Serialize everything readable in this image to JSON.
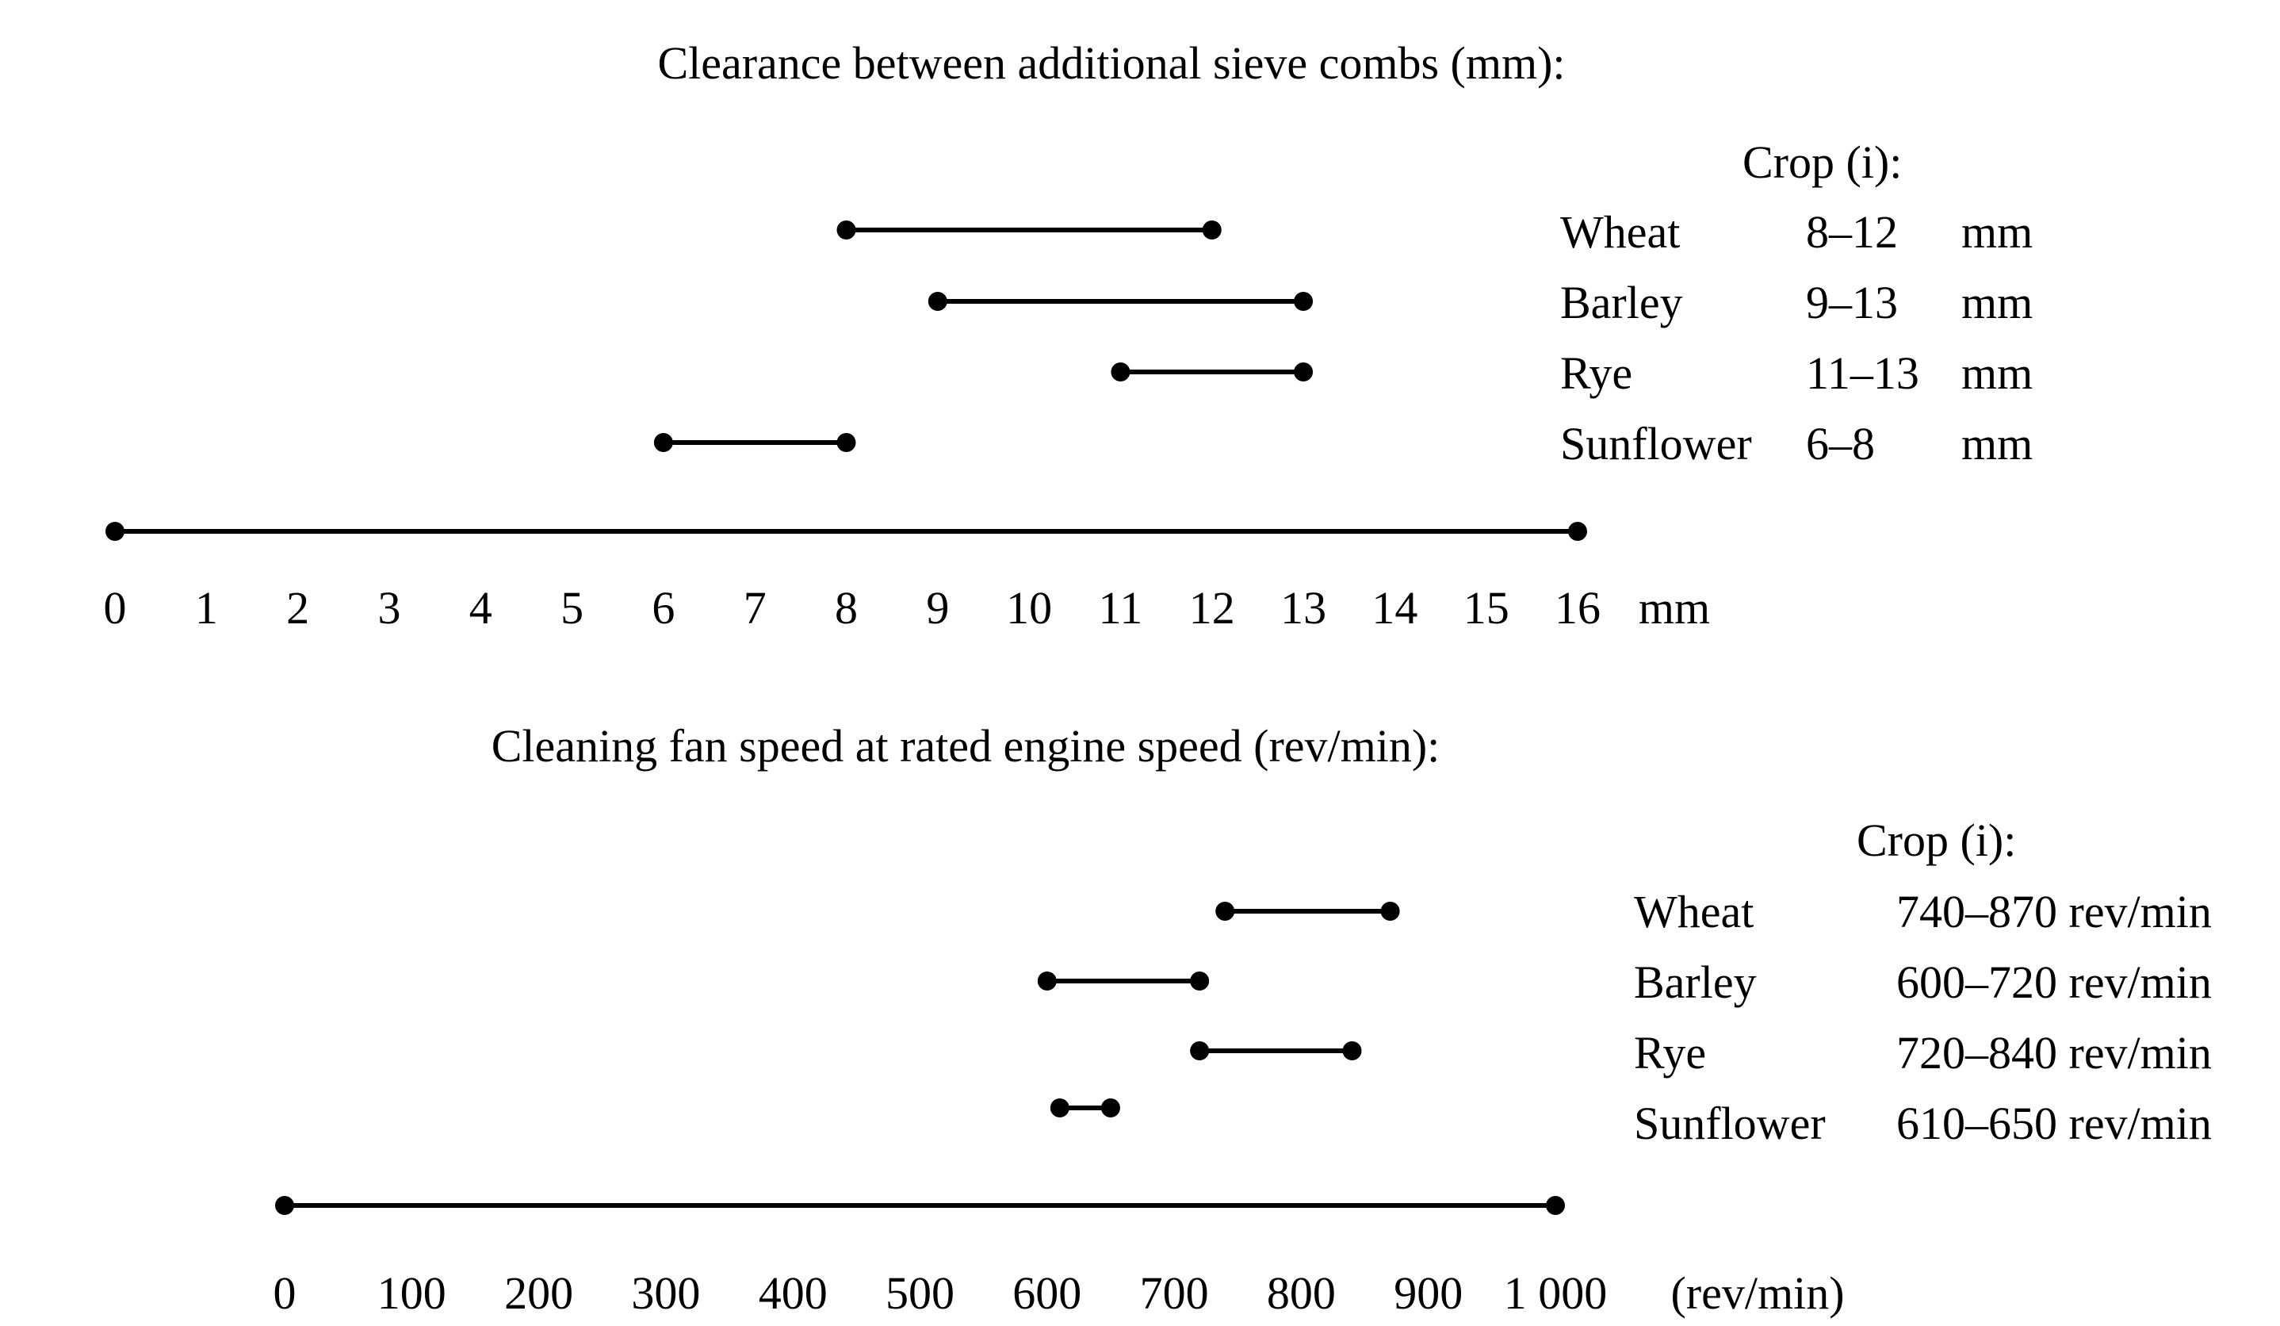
{
  "page": {
    "background": "#ffffff",
    "ink": "#000000"
  },
  "chart_data": [
    {
      "type": "bar",
      "subtype": "interval-range",
      "orientation": "horizontal",
      "title": "Clearance between additional sieve combs (mm):",
      "unit": "mm",
      "xlim": [
        0,
        16
      ],
      "grid": false,
      "legend_position": "right",
      "axis": {
        "min": 0,
        "max": 16,
        "tick_values": [
          0,
          1,
          2,
          3,
          4,
          5,
          6,
          7,
          8,
          9,
          10,
          11,
          12,
          13,
          14,
          15,
          16
        ],
        "tick_labels": [
          "0",
          "1",
          "2",
          "3",
          "4",
          "5",
          "6",
          "7",
          "8",
          "9",
          "10",
          "11",
          "12",
          "13",
          "14",
          "15",
          "16"
        ],
        "unit_label": "mm"
      },
      "series": [
        {
          "name": "Wheat",
          "range": [
            8,
            12
          ]
        },
        {
          "name": "Barley",
          "range": [
            9,
            13
          ]
        },
        {
          "name": "Rye",
          "range": [
            11,
            13
          ]
        },
        {
          "name": "Sunflower",
          "range": [
            6,
            8
          ]
        }
      ],
      "legend": {
        "title": "Crop (i):",
        "rows": [
          {
            "crop": "Wheat",
            "range": "8–12",
            "unit": "mm"
          },
          {
            "crop": "Barley",
            "range": "9–13",
            "unit": "mm"
          },
          {
            "crop": "Rye",
            "range": "11–13",
            "unit": "mm"
          },
          {
            "crop": "Sunflower",
            "range": "6–8",
            "unit": "mm"
          }
        ]
      }
    },
    {
      "type": "bar",
      "subtype": "interval-range",
      "orientation": "horizontal",
      "title": "Cleaning fan speed at rated engine speed (rev/min):",
      "unit": "rev/min",
      "xlim": [
        0,
        1000
      ],
      "grid": false,
      "legend_position": "right",
      "axis": {
        "min": 0,
        "max": 1000,
        "tick_values": [
          0,
          100,
          200,
          300,
          400,
          500,
          600,
          700,
          800,
          900,
          1000
        ],
        "tick_labels": [
          "0",
          "100",
          "200",
          "300",
          "400",
          "500",
          "600",
          "700",
          "800",
          "900",
          "1 000"
        ],
        "unit_label": "(rev/min)"
      },
      "series": [
        {
          "name": "Wheat",
          "range": [
            740,
            870
          ]
        },
        {
          "name": "Barley",
          "range": [
            600,
            720
          ]
        },
        {
          "name": "Rye",
          "range": [
            720,
            840
          ]
        },
        {
          "name": "Sunflower",
          "range": [
            610,
            650
          ]
        }
      ],
      "legend": {
        "title": "Crop (i):",
        "rows": [
          {
            "crop": "Wheat",
            "range": "740–870 rev/min"
          },
          {
            "crop": "Barley",
            "range": "600–720 rev/min"
          },
          {
            "crop": "Rye",
            "range": "720–840 rev/min"
          },
          {
            "crop": "Sunflower",
            "range": "610–650 rev/min"
          }
        ]
      }
    }
  ]
}
